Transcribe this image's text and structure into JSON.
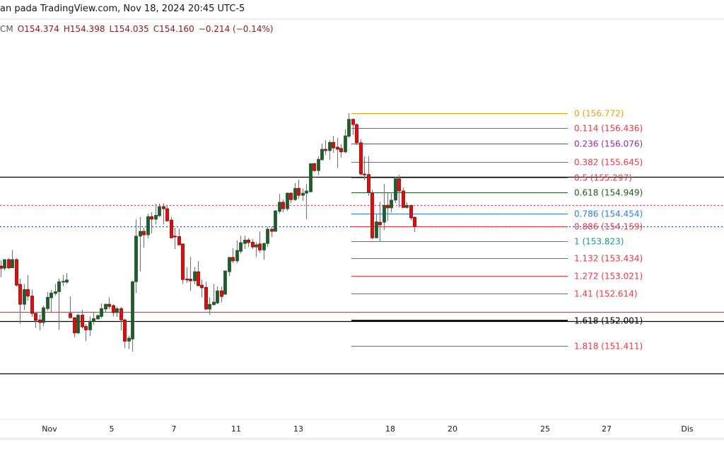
{
  "header": {
    "source_line": "an pada TradingView.com, Nov 18, 2024 20:45 UTC-5",
    "symbol_suffix": "CM",
    "open": "O154.374",
    "high": "H154.398",
    "low": "L154.035",
    "close": "C154.160",
    "change": "−0.214 (−0.14%)"
  },
  "colors": {
    "up": "#1f5b2b",
    "down": "#ff0000",
    "down_border": "#6e0d0d",
    "wick": "#787878"
  },
  "chart_data": {
    "type": "candlestick",
    "price_range": [
      150.3,
      158.0
    ],
    "x_ticks": [
      "Nov",
      "5",
      "7",
      "11",
      "13",
      "18",
      "20",
      "25",
      "27",
      "Dis"
    ],
    "candles_ohlc": [
      [
        153.25,
        153.38,
        152.99,
        153.2
      ],
      [
        153.2,
        153.41,
        153.15,
        153.4
      ],
      [
        153.4,
        153.43,
        153.18,
        153.21
      ],
      [
        153.21,
        153.62,
        153.2,
        153.4
      ],
      [
        153.4,
        153.43,
        152.78,
        152.81
      ],
      [
        152.83,
        152.96,
        151.92,
        152.37
      ],
      [
        152.37,
        152.84,
        152.24,
        152.71
      ],
      [
        152.71,
        153.04,
        152.45,
        152.56
      ],
      [
        152.56,
        152.7,
        152.08,
        152.16
      ],
      [
        152.16,
        152.19,
        151.83,
        152.0
      ],
      [
        152.01,
        152.13,
        151.77,
        151.95
      ],
      [
        151.95,
        152.34,
        151.87,
        152.29
      ],
      [
        152.27,
        152.65,
        152.22,
        152.53
      ],
      [
        152.52,
        152.7,
        152.19,
        152.63
      ],
      [
        152.62,
        152.84,
        152.57,
        152.66
      ],
      [
        152.66,
        152.96,
        151.78,
        152.89
      ],
      [
        152.89,
        153.05,
        152.79,
        152.9
      ],
      [
        152.88,
        153.09,
        152.84,
        152.93
      ],
      [
        152.16,
        152.55,
        152.06,
        152.06
      ],
      [
        152.06,
        152.08,
        151.61,
        151.71
      ],
      [
        151.71,
        152.15,
        151.68,
        152.12
      ],
      [
        152.12,
        152.25,
        151.81,
        151.85
      ],
      [
        151.86,
        151.91,
        151.52,
        151.78
      ],
      [
        151.78,
        152.09,
        151.64,
        151.98
      ],
      [
        151.98,
        152.19,
        151.9,
        152.04
      ],
      [
        152.03,
        152.14,
        152.03,
        152.11
      ],
      [
        152.09,
        152.39,
        152.04,
        152.27
      ],
      [
        152.26,
        152.39,
        152.18,
        152.37
      ],
      [
        152.37,
        152.53,
        152.26,
        152.32
      ],
      [
        152.34,
        152.37,
        152.09,
        152.18
      ],
      [
        152.18,
        152.31,
        152.08,
        152.27
      ],
      [
        152.27,
        152.31,
        151.77,
        152.01
      ],
      [
        152.01,
        152.04,
        151.36,
        151.52
      ],
      [
        151.52,
        151.64,
        151.34,
        151.59
      ],
      [
        151.57,
        152.91,
        151.28,
        152.89
      ],
      [
        152.89,
        154.33,
        152.63,
        153.94
      ],
      [
        153.94,
        154.38,
        153.13,
        154.05
      ],
      [
        154.05,
        154.13,
        153.67,
        153.97
      ],
      [
        153.97,
        154.46,
        153.89,
        154.39
      ],
      [
        154.39,
        154.49,
        154.0,
        154.33
      ],
      [
        154.33,
        154.69,
        154.21,
        154.42
      ],
      [
        154.41,
        154.69,
        154.38,
        154.62
      ],
      [
        154.62,
        154.7,
        154.21,
        154.57
      ],
      [
        154.57,
        154.65,
        154.28,
        154.29
      ],
      [
        154.31,
        154.38,
        153.89,
        153.9
      ],
      [
        153.94,
        154.13,
        153.64,
        153.93
      ],
      [
        153.93,
        154.11,
        153.72,
        153.74
      ],
      [
        153.76,
        153.77,
        152.84,
        152.94
      ],
      [
        152.95,
        153.22,
        152.86,
        152.94
      ],
      [
        152.95,
        153.46,
        152.68,
        152.91
      ],
      [
        152.91,
        153.23,
        152.83,
        153.12
      ],
      [
        153.12,
        153.36,
        152.78,
        152.8
      ],
      [
        152.81,
        152.94,
        152.53,
        152.75
      ],
      [
        152.76,
        152.89,
        152.24,
        152.26
      ],
      [
        152.26,
        152.53,
        152.13,
        152.37
      ],
      [
        152.36,
        152.84,
        152.34,
        152.42
      ],
      [
        152.4,
        152.78,
        152.37,
        152.68
      ],
      [
        152.68,
        152.78,
        152.42,
        152.55
      ],
      [
        152.6,
        153.14,
        152.6,
        153.14
      ],
      [
        153.12,
        153.46,
        153.02,
        153.45
      ],
      [
        153.45,
        153.66,
        153.32,
        153.37
      ],
      [
        153.37,
        153.84,
        153.32,
        153.61
      ],
      [
        153.59,
        153.95,
        153.54,
        153.79
      ],
      [
        153.77,
        153.95,
        153.64,
        153.85
      ],
      [
        153.85,
        153.9,
        153.69,
        153.79
      ],
      [
        153.8,
        153.87,
        153.64,
        153.69
      ],
      [
        153.69,
        153.8,
        153.46,
        153.74
      ],
      [
        153.76,
        154.05,
        153.56,
        153.62
      ],
      [
        153.62,
        153.79,
        153.4,
        153.77
      ],
      [
        153.77,
        154.16,
        153.69,
        154.1
      ],
      [
        154.1,
        154.16,
        153.92,
        154.05
      ],
      [
        154.05,
        154.54,
        154.05,
        154.52
      ],
      [
        154.51,
        154.91,
        154.46,
        154.72
      ],
      [
        154.72,
        154.78,
        154.49,
        154.57
      ],
      [
        154.57,
        154.95,
        154.52,
        154.93
      ],
      [
        154.93,
        154.95,
        154.7,
        154.78
      ],
      [
        154.78,
        155.16,
        154.75,
        155.04
      ],
      [
        155.04,
        155.24,
        154.8,
        154.88
      ],
      [
        154.88,
        155.03,
        154.75,
        154.93
      ],
      [
        154.93,
        155.14,
        154.33,
        154.98
      ],
      [
        154.96,
        155.61,
        154.95,
        155.61
      ],
      [
        155.61,
        155.63,
        155.42,
        155.45
      ],
      [
        155.45,
        155.78,
        155.34,
        155.71
      ],
      [
        155.7,
        156.07,
        155.68,
        155.94
      ],
      [
        155.94,
        156.15,
        155.81,
        155.91
      ],
      [
        155.91,
        156.15,
        155.7,
        156.1
      ],
      [
        156.1,
        156.25,
        155.86,
        155.97
      ],
      [
        155.99,
        156.2,
        155.51,
        155.94
      ],
      [
        155.96,
        156.06,
        155.75,
        155.88
      ],
      [
        155.88,
        156.4,
        155.85,
        156.25
      ],
      [
        156.24,
        156.77,
        156.2,
        156.63
      ],
      [
        156.63,
        156.65,
        156.27,
        156.51
      ],
      [
        156.51,
        156.54,
        156.04,
        156.09
      ],
      [
        156.09,
        156.17,
        155.34,
        155.37
      ],
      [
        155.37,
        155.78,
        155.23,
        155.36
      ],
      [
        155.36,
        155.78,
        154.87,
        154.95
      ],
      [
        154.93,
        155.01,
        153.87,
        153.9
      ],
      [
        153.9,
        154.46,
        153.89,
        154.27
      ],
      [
        154.26,
        154.73,
        153.82,
        154.2
      ],
      [
        154.26,
        155.14,
        154.08,
        154.65
      ],
      [
        154.65,
        154.93,
        154.29,
        154.59
      ],
      [
        154.59,
        154.95,
        154.49,
        154.77
      ],
      [
        154.77,
        155.31,
        154.7,
        155.26
      ],
      [
        155.26,
        155.35,
        154.6,
        154.98
      ],
      [
        154.98,
        155.06,
        154.59,
        154.6
      ],
      [
        154.6,
        154.72,
        154.57,
        154.65
      ],
      [
        154.65,
        154.65,
        154.3,
        154.36
      ],
      [
        154.374,
        154.398,
        154.035,
        154.16
      ]
    ],
    "horizontal_lines": [
      {
        "name": "resistance-line-black",
        "price": 155.3,
        "color": "#000000",
        "style": "solid"
      },
      {
        "name": "red-dotted-line",
        "price": 154.65,
        "color": "#f23645",
        "style": "dotted"
      },
      {
        "name": "current-price-line",
        "price": 154.16,
        "color": "#1848cc",
        "style": "dotted"
      },
      {
        "name": "support-line-red",
        "price": 152.19,
        "color": "#f23645",
        "style": "solid"
      },
      {
        "name": "support-line-black",
        "price": 151.98,
        "color": "#000000",
        "style": "solid"
      },
      {
        "name": "low-line-black",
        "price": 150.77,
        "color": "#000000",
        "style": "solid"
      }
    ],
    "fibonacci": [
      {
        "ratio": "0",
        "price": 156.772,
        "label": "0 (156.772)",
        "color": "#f59c11"
      },
      {
        "ratio": "0.114",
        "price": 156.436,
        "label": "0.114 (156.436)",
        "color": "#f23645"
      },
      {
        "ratio": "0.236",
        "price": 156.076,
        "label": "0.236 (156.076)",
        "color": "#9c27b0"
      },
      {
        "ratio": "0.382",
        "price": 155.645,
        "label": "0.382 (155.645)",
        "color": "#f23645"
      },
      {
        "ratio": "0.5",
        "price": 155.297,
        "label": "0.5 (155.297)",
        "color": "#f23645"
      },
      {
        "ratio": "0.618",
        "price": 154.949,
        "label": "0.618 (154.949)",
        "color": "#1e5b1e"
      },
      {
        "ratio": "0.786",
        "price": 154.454,
        "label": "0.786 (154.454)",
        "color": "#2f7cf6"
      },
      {
        "ratio": "0.886",
        "price": 154.159,
        "label": "0.886 (154.159)",
        "color": "#f23645"
      },
      {
        "ratio": "1",
        "price": 153.823,
        "label": "1 (153.823)",
        "color": "#159a9c"
      },
      {
        "ratio": "1.132",
        "price": 153.434,
        "label": "1.132 (153.434)",
        "color": "#f23645"
      },
      {
        "ratio": "1.272",
        "price": 153.021,
        "label": "1.272 (153.021)",
        "color": "#f23645"
      },
      {
        "ratio": "1.41",
        "price": 152.614,
        "label": "1.41 (152.614)",
        "color": "#f23645"
      },
      {
        "ratio": "1.618",
        "price": 152.001,
        "label": "1.618 (152.001)",
        "color": "#000000"
      },
      {
        "ratio": "1.818",
        "price": 151.411,
        "label": "1.818 (151.411)",
        "color": "#f23645"
      }
    ]
  }
}
